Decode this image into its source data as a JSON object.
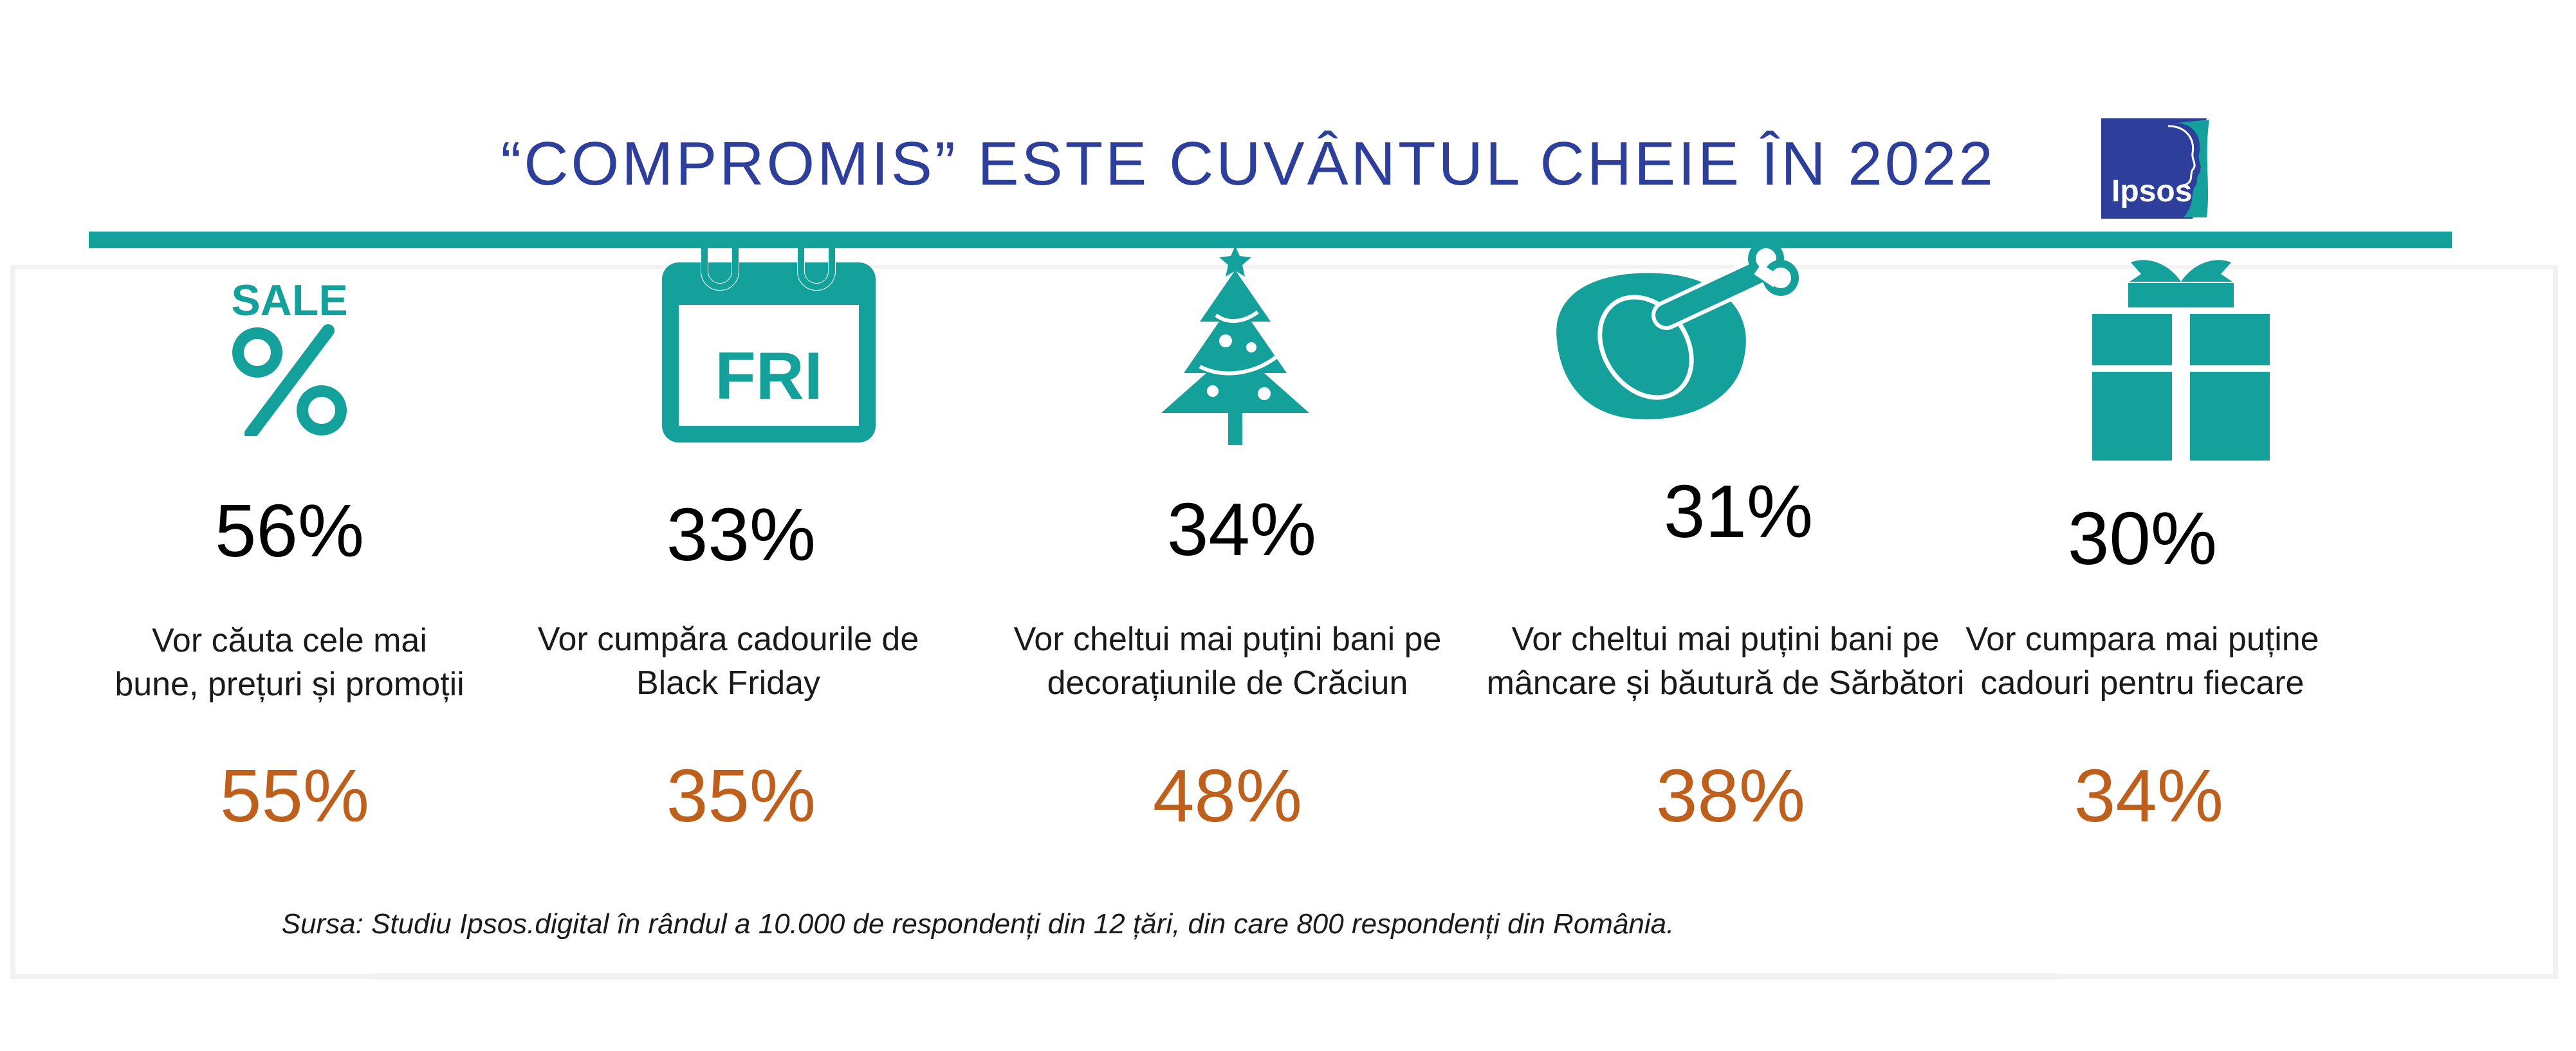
{
  "title": "“COMPROMIS” ESTE CUVÂNTUL CHEIE ÎN 2022",
  "logo": {
    "text": "Ipsos",
    "icon": "ipsos-logo",
    "color": "#2d3f9b"
  },
  "colors": {
    "accent": "#15a19b",
    "title": "#2d3f9b",
    "orange": "#bf5f1c"
  },
  "items": [
    {
      "icon": "sale-percent-icon",
      "icon_text": "SALE",
      "pct": "56%",
      "desc": "Vor căuta cele mai\nbune, prețuri și promoții",
      "pct2": "55%"
    },
    {
      "icon": "calendar-friday-icon",
      "icon_text": "FRI",
      "pct": "33%",
      "desc": "Vor cumpăra cadourile de\nBlack Friday",
      "pct2": "35%"
    },
    {
      "icon": "christmas-tree-icon",
      "pct": "34%",
      "desc": "Vor cheltui mai puțini bani pe\ndecorațiunile de Crăciun",
      "pct2": "48%"
    },
    {
      "icon": "roast-chicken-icon",
      "pct": "31%",
      "desc": "Vor cheltui mai puțini bani pe\nmâncare și băutură de Sărbători",
      "pct2": "38%"
    },
    {
      "icon": "gift-box-icon",
      "pct": "30%",
      "desc": "Vor cumpara mai puține\ncadouri pentru fiecare",
      "pct2": "34%"
    }
  ],
  "source": "Sursa:  Studiu Ipsos.digital în rândul a 10.000 de respondenți din 12 țări, din care 800 respondenți din România."
}
